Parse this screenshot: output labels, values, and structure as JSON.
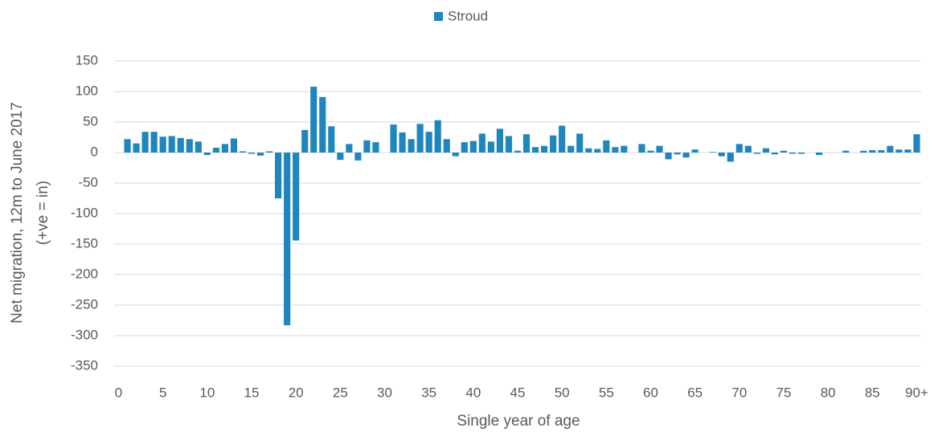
{
  "chart_data": {
    "type": "bar",
    "xlabel": "Single year of age",
    "ylabel": [
      "Net migration, 12m to June 2017",
      "(+ve = in)"
    ],
    "categories": [
      "0",
      null,
      null,
      null,
      null,
      "5",
      null,
      null,
      null,
      null,
      "10",
      null,
      null,
      null,
      null,
      "15",
      null,
      null,
      null,
      null,
      "20",
      null,
      null,
      null,
      null,
      "25",
      null,
      null,
      null,
      null,
      "30",
      null,
      null,
      null,
      null,
      "35",
      null,
      null,
      null,
      null,
      "40",
      null,
      null,
      null,
      null,
      "45",
      null,
      null,
      null,
      null,
      "50",
      null,
      null,
      null,
      null,
      "55",
      null,
      null,
      null,
      null,
      "60",
      null,
      null,
      null,
      null,
      "65",
      null,
      null,
      null,
      null,
      "70",
      null,
      null,
      null,
      null,
      "75",
      null,
      null,
      null,
      null,
      "80",
      null,
      null,
      null,
      null,
      "85",
      null,
      null,
      null,
      null,
      "90+"
    ],
    "series": [
      {
        "name": "Stroud",
        "color": "#1f86bd",
        "values": [
          0,
          22,
          15,
          34,
          34,
          26,
          27,
          24,
          22,
          18,
          -4,
          8,
          14,
          23,
          2,
          -2,
          -5,
          2,
          -75,
          -283,
          -144,
          37,
          108,
          91,
          43,
          -12,
          14,
          -13,
          20,
          17,
          0,
          46,
          33,
          22,
          47,
          34,
          53,
          22,
          -6,
          17,
          19,
          31,
          18,
          39,
          27,
          3,
          30,
          9,
          11,
          28,
          44,
          11,
          31,
          7,
          6,
          20,
          9,
          11,
          0,
          14,
          3,
          11,
          -11,
          -3,
          -8,
          5,
          0,
          1,
          -6,
          -15,
          14,
          11,
          -2,
          7,
          -3,
          3,
          -2,
          -2,
          0,
          -4,
          0,
          0,
          3,
          0,
          3,
          4,
          4,
          11,
          5,
          5,
          30
        ]
      }
    ],
    "ylim": [
      -350,
      150
    ],
    "yticks": [
      -350,
      -300,
      -250,
      -200,
      -150,
      -100,
      -50,
      0,
      50,
      100,
      150
    ],
    "grid": true,
    "legend": "top"
  }
}
